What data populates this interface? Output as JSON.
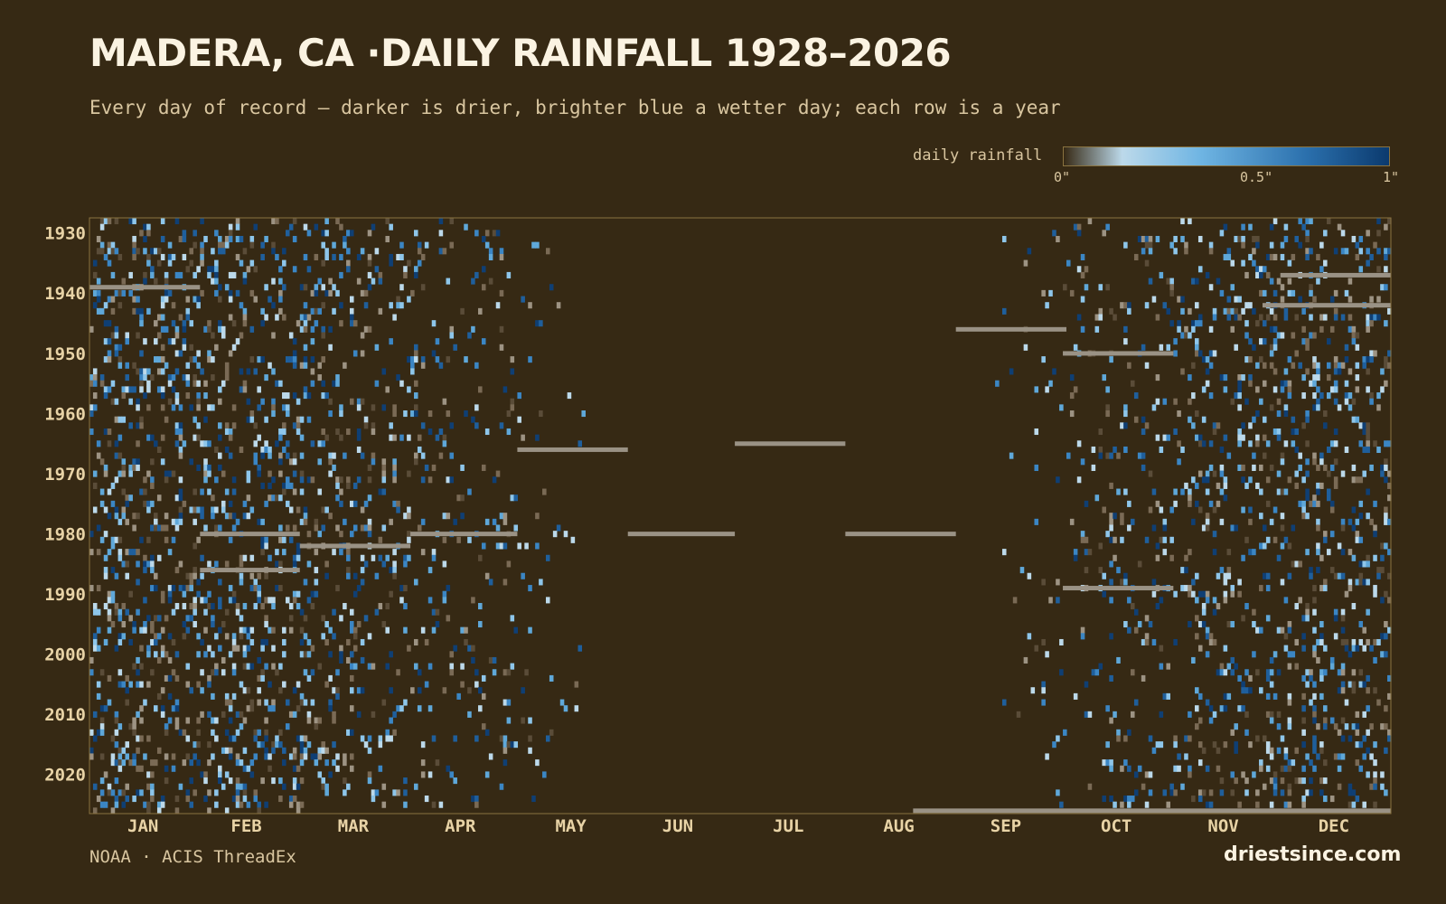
{
  "title": "MADERA, CA ·DAILY RAINFALL 1928–2026",
  "subtitle": "Every day of record — darker is drier, brighter blue a wetter day; each row is a year",
  "legend": {
    "label": "daily rainfall",
    "ticks": [
      "0\"",
      "0.5\"",
      "1\""
    ],
    "colors": [
      "#362914",
      "#bcd9ea",
      "#6fb5e3",
      "#2a6fac",
      "#0b3a6e"
    ]
  },
  "footer": {
    "source": "NOAA · ACIS ThreadEx",
    "brand": "driestsince.com"
  },
  "colors": {
    "background": "#362914",
    "missing": "#9a9285",
    "frame": "#8a7340"
  },
  "chart_data": {
    "type": "heatmap",
    "title": "MADERA, CA ·DAILY RAINFALL 1928–2026",
    "x_axis": {
      "label": "",
      "ticks": [
        "JAN",
        "FEB",
        "MAR",
        "APR",
        "MAY",
        "JUN",
        "JUL",
        "AUG",
        "SEP",
        "OCT",
        "NOV",
        "DEC"
      ],
      "range": [
        1,
        365
      ]
    },
    "y_axis": {
      "label": "",
      "ticks": [
        "1930",
        "1940",
        "1950",
        "1960",
        "1970",
        "1980",
        "1990",
        "2000",
        "2010",
        "2020"
      ],
      "range": [
        1928,
        2026
      ]
    },
    "color_scale": {
      "label": "daily rainfall",
      "min": 0,
      "max": 1,
      "unit": "in"
    },
    "missing_spans": [
      {
        "year": 1939,
        "start_day": 1,
        "end_day": 31
      },
      {
        "year": 1937,
        "start_day": 335,
        "end_day": 365
      },
      {
        "year": 1942,
        "start_day": 330,
        "end_day": 365
      },
      {
        "year": 1946,
        "start_day": 244,
        "end_day": 274
      },
      {
        "year": 1950,
        "start_day": 274,
        "end_day": 304
      },
      {
        "year": 1966,
        "start_day": 121,
        "end_day": 151
      },
      {
        "year": 1965,
        "start_day": 182,
        "end_day": 212
      },
      {
        "year": 1980,
        "start_day": 32,
        "end_day": 59
      },
      {
        "year": 1980,
        "start_day": 91,
        "end_day": 120
      },
      {
        "year": 1980,
        "start_day": 152,
        "end_day": 181
      },
      {
        "year": 1980,
        "start_day": 213,
        "end_day": 243
      },
      {
        "year": 1982,
        "start_day": 60,
        "end_day": 90
      },
      {
        "year": 1986,
        "start_day": 32,
        "end_day": 59
      },
      {
        "year": 1989,
        "start_day": 274,
        "end_day": 304
      },
      {
        "year": 2026,
        "start_day": 232,
        "end_day": 365
      }
    ]
  }
}
